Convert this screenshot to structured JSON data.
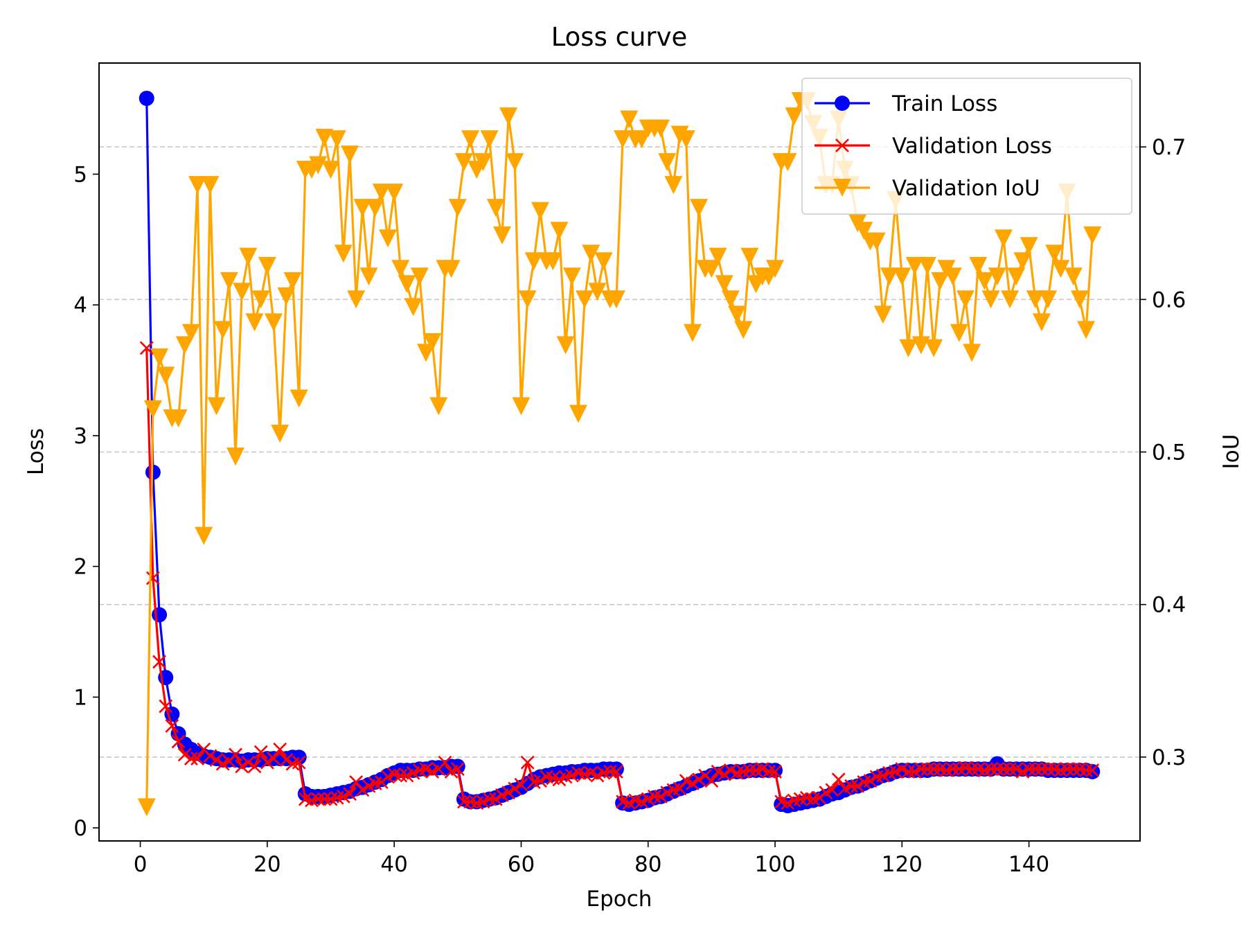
{
  "chart_data": {
    "type": "line",
    "title": "Loss curve",
    "xlabel": "Epoch",
    "ylabel": "Loss",
    "y2label": "IoU",
    "xlim": [
      -6.5,
      157.5
    ],
    "ylim": [
      -0.1,
      5.85
    ],
    "y2lim": [
      0.245,
      0.755
    ],
    "xticks": [
      0,
      20,
      40,
      60,
      80,
      100,
      120,
      140
    ],
    "yticks": [
      0,
      1,
      2,
      3,
      4,
      5
    ],
    "y2ticks": [
      0.3,
      0.4,
      0.5,
      0.6,
      0.7
    ],
    "grid": "dashed horizontal lines at IoU ticks",
    "legend_position": "top-right",
    "x": [
      1,
      2,
      3,
      4,
      5,
      6,
      7,
      8,
      9,
      10,
      11,
      12,
      13,
      14,
      15,
      16,
      17,
      18,
      19,
      20,
      21,
      22,
      23,
      24,
      25,
      26,
      27,
      28,
      29,
      30,
      31,
      32,
      33,
      34,
      35,
      36,
      37,
      38,
      39,
      40,
      41,
      42,
      43,
      44,
      45,
      46,
      47,
      48,
      49,
      50,
      51,
      52,
      53,
      54,
      55,
      56,
      57,
      58,
      59,
      60,
      61,
      62,
      63,
      64,
      65,
      66,
      67,
      68,
      69,
      70,
      71,
      72,
      73,
      74,
      75,
      76,
      77,
      78,
      79,
      80,
      81,
      82,
      83,
      84,
      85,
      86,
      87,
      88,
      89,
      90,
      91,
      92,
      93,
      94,
      95,
      96,
      97,
      98,
      99,
      100,
      101,
      102,
      103,
      104,
      105,
      106,
      107,
      108,
      109,
      110,
      111,
      112,
      113,
      114,
      115,
      116,
      117,
      118,
      119,
      120,
      121,
      122,
      123,
      124,
      125,
      126,
      127,
      128,
      129,
      130,
      131,
      132,
      133,
      134,
      135,
      136,
      137,
      138,
      139,
      140,
      141,
      142,
      143,
      144,
      145,
      146,
      147,
      148,
      149,
      150
    ],
    "series": [
      {
        "name": "Train Loss",
        "axis": "left",
        "color": "#0000ff",
        "marker": "circle",
        "values": [
          5.58,
          2.72,
          1.63,
          1.15,
          0.87,
          0.72,
          0.64,
          0.6,
          0.57,
          0.55,
          0.54,
          0.53,
          0.52,
          0.52,
          0.52,
          0.51,
          0.52,
          0.52,
          0.52,
          0.53,
          0.53,
          0.53,
          0.53,
          0.54,
          0.54,
          0.26,
          0.24,
          0.24,
          0.24,
          0.25,
          0.26,
          0.27,
          0.28,
          0.3,
          0.31,
          0.33,
          0.35,
          0.37,
          0.4,
          0.42,
          0.44,
          0.44,
          0.44,
          0.45,
          0.45,
          0.46,
          0.46,
          0.46,
          0.47,
          0.47,
          0.22,
          0.2,
          0.2,
          0.21,
          0.22,
          0.23,
          0.25,
          0.27,
          0.29,
          0.31,
          0.34,
          0.37,
          0.39,
          0.4,
          0.41,
          0.42,
          0.42,
          0.43,
          0.43,
          0.44,
          0.44,
          0.44,
          0.45,
          0.45,
          0.45,
          0.19,
          0.18,
          0.19,
          0.2,
          0.21,
          0.23,
          0.24,
          0.26,
          0.28,
          0.3,
          0.32,
          0.34,
          0.36,
          0.38,
          0.4,
          0.41,
          0.42,
          0.43,
          0.43,
          0.43,
          0.44,
          0.44,
          0.44,
          0.44,
          0.44,
          0.18,
          0.17,
          0.18,
          0.19,
          0.2,
          0.21,
          0.22,
          0.24,
          0.26,
          0.27,
          0.29,
          0.31,
          0.32,
          0.34,
          0.36,
          0.38,
          0.4,
          0.41,
          0.43,
          0.44,
          0.44,
          0.44,
          0.44,
          0.44,
          0.45,
          0.45,
          0.45,
          0.45,
          0.45,
          0.45,
          0.45,
          0.45,
          0.45,
          0.45,
          0.49,
          0.45,
          0.45,
          0.45,
          0.45,
          0.45,
          0.45,
          0.45,
          0.44,
          0.44,
          0.44,
          0.44,
          0.44,
          0.44,
          0.44,
          0.43
        ]
      },
      {
        "name": "Validation Loss",
        "axis": "left",
        "color": "#ff0000",
        "marker": "x",
        "values": [
          3.67,
          1.91,
          1.27,
          0.93,
          0.78,
          0.66,
          0.56,
          0.53,
          0.53,
          0.6,
          0.55,
          0.52,
          0.49,
          0.51,
          0.56,
          0.47,
          0.5,
          0.47,
          0.58,
          0.5,
          0.53,
          0.6,
          0.52,
          0.49,
          0.5,
          0.22,
          0.21,
          0.22,
          0.22,
          0.22,
          0.23,
          0.24,
          0.26,
          0.35,
          0.29,
          0.32,
          0.34,
          0.35,
          0.39,
          0.41,
          0.4,
          0.4,
          0.42,
          0.44,
          0.45,
          0.43,
          0.45,
          0.5,
          0.43,
          0.45,
          0.2,
          0.2,
          0.19,
          0.2,
          0.22,
          0.22,
          0.25,
          0.27,
          0.3,
          0.33,
          0.5,
          0.35,
          0.36,
          0.39,
          0.38,
          0.37,
          0.39,
          0.4,
          0.42,
          0.41,
          0.42,
          0.4,
          0.42,
          0.43,
          0.43,
          0.2,
          0.19,
          0.21,
          0.2,
          0.22,
          0.24,
          0.24,
          0.27,
          0.29,
          0.3,
          0.36,
          0.34,
          0.37,
          0.4,
          0.36,
          0.43,
          0.41,
          0.44,
          0.42,
          0.43,
          0.44,
          0.44,
          0.45,
          0.43,
          0.43,
          0.2,
          0.19,
          0.21,
          0.22,
          0.23,
          0.22,
          0.23,
          0.27,
          0.29,
          0.37,
          0.3,
          0.32,
          0.32,
          0.35,
          0.36,
          0.39,
          0.4,
          0.42,
          0.43,
          0.45,
          0.43,
          0.43,
          0.45,
          0.45,
          0.45,
          0.45,
          0.44,
          0.45,
          0.45,
          0.46,
          0.45,
          0.45,
          0.44,
          0.45,
          0.45,
          0.45,
          0.45,
          0.45,
          0.43,
          0.45,
          0.45,
          0.45,
          0.45,
          0.45,
          0.44,
          0.45,
          0.45,
          0.45,
          0.44,
          0.44
        ]
      },
      {
        "name": "Validation IoU",
        "axis": "right",
        "color": "#ffa500",
        "marker": "triangle-down",
        "values": [
          0.267,
          0.528,
          0.562,
          0.55,
          0.522,
          0.522,
          0.57,
          0.578,
          0.675,
          0.445,
          0.675,
          0.53,
          0.58,
          0.612,
          0.497,
          0.605,
          0.628,
          0.585,
          0.6,
          0.622,
          0.585,
          0.512,
          0.602,
          0.612,
          0.535,
          0.685,
          0.685,
          0.688,
          0.706,
          0.685,
          0.705,
          0.63,
          0.695,
          0.6,
          0.66,
          0.615,
          0.66,
          0.67,
          0.64,
          0.67,
          0.62,
          0.61,
          0.595,
          0.615,
          0.565,
          0.572,
          0.53,
          0.62,
          0.62,
          0.66,
          0.69,
          0.705,
          0.685,
          0.69,
          0.705,
          0.66,
          0.642,
          0.72,
          0.69,
          0.53,
          0.6,
          0.625,
          0.658,
          0.625,
          0.625,
          0.645,
          0.57,
          0.615,
          0.525,
          0.6,
          0.63,
          0.605,
          0.625,
          0.6,
          0.6,
          0.705,
          0.718,
          0.705,
          0.705,
          0.712,
          0.712,
          0.712,
          0.69,
          0.675,
          0.708,
          0.705,
          0.578,
          0.66,
          0.62,
          0.62,
          0.628,
          0.61,
          0.6,
          0.59,
          0.58,
          0.628,
          0.61,
          0.615,
          0.615,
          0.62,
          0.69,
          0.69,
          0.72,
          0.73,
          0.73,
          0.715,
          0.706,
          0.675,
          0.675,
          0.718,
          0.685,
          0.675,
          0.65,
          0.645,
          0.638,
          0.638,
          0.59,
          0.615,
          0.665,
          0.615,
          0.568,
          0.622,
          0.57,
          0.622,
          0.568,
          0.612,
          0.62,
          0.615,
          0.578,
          0.6,
          0.565,
          0.622,
          0.612,
          0.6,
          0.615,
          0.64,
          0.6,
          0.615,
          0.625,
          0.635,
          0.6,
          0.585,
          0.6,
          0.63,
          0.62,
          0.67,
          0.615,
          0.6,
          0.58,
          0.642
        ]
      }
    ]
  }
}
